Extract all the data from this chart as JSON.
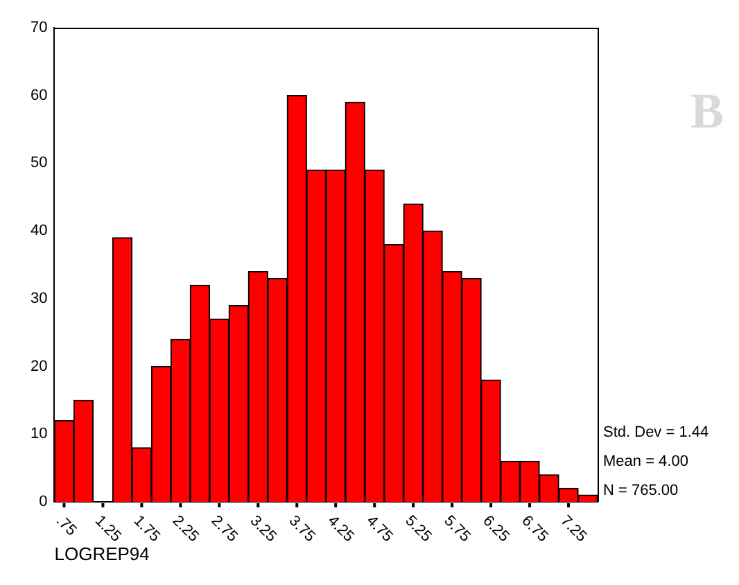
{
  "chart_data": {
    "type": "histogram",
    "xlabel": "LOGREP94",
    "bins": [
      0.625,
      0.875,
      1.125,
      1.375,
      1.625,
      1.875,
      2.125,
      2.375,
      2.625,
      2.875,
      3.125,
      3.375,
      3.625,
      3.875,
      4.125,
      4.375,
      4.625,
      4.875,
      5.125,
      5.375,
      5.625,
      5.875,
      6.125,
      6.375,
      6.625,
      6.875,
      7.125,
      7.375,
      7.625
    ],
    "values": [
      12,
      15,
      0,
      39,
      8,
      20,
      24,
      32,
      27,
      29,
      34,
      33,
      60,
      49,
      49,
      59,
      49,
      38,
      44,
      40,
      34,
      33,
      18,
      6,
      6,
      4,
      2,
      1
    ],
    "color": "#ff0000",
    "xlim": [
      0.625,
      7.625
    ],
    "xticks": [
      {
        "value": 0.75,
        "label": ".75"
      },
      1.25,
      1.75,
      2.25,
      2.75,
      3.25,
      3.75,
      4.25,
      4.75,
      5.25,
      5.75,
      6.25,
      6.75,
      7.25
    ],
    "ylim": [
      0,
      70
    ],
    "yticks": [
      0,
      10,
      20,
      30,
      40,
      50,
      60,
      70
    ],
    "grid": false,
    "legend": false,
    "annotations": [
      "B",
      "Std. Dev = 1.44",
      "Mean = 4.00",
      "N = 765.00"
    ]
  }
}
